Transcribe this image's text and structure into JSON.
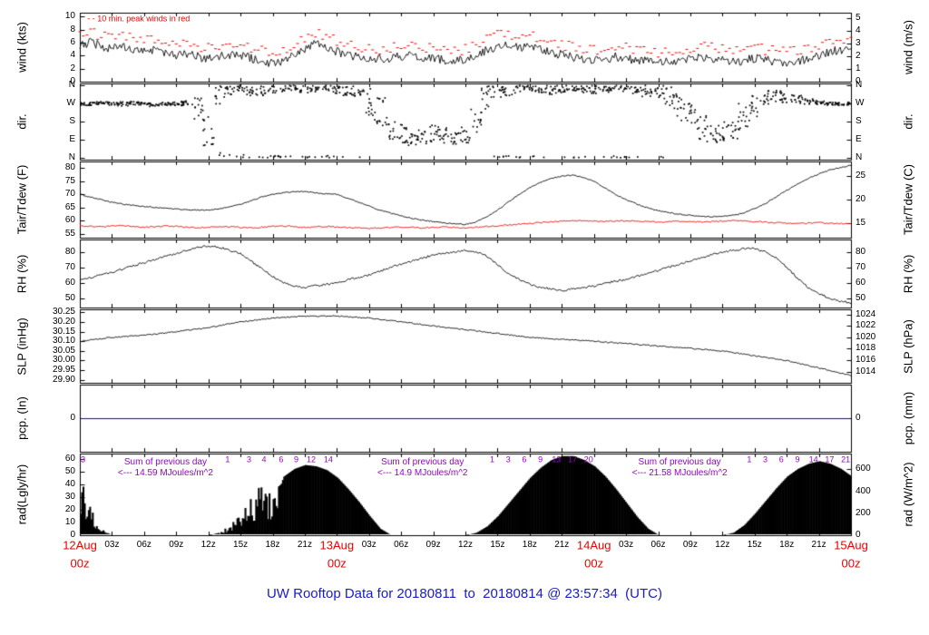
{
  "title": "UW Rooftop Data for 20180811  to  20180814 @ 23:57:34  (UTC)",
  "wind_note": "- - 10 min. peak winds in red",
  "colors": {
    "trace_black": "#000000",
    "peak_red": "#ee0000",
    "dew_red": "#ee0000",
    "title_blue": "#1a1acc",
    "annotation_purple": "#9900cc",
    "precip_blue": "#0000ee",
    "x_major_red": "#ee0000"
  },
  "x_axis": {
    "hours_total": 72,
    "minor_labels": [
      "03z",
      "06z",
      "09z",
      "12z",
      "15z",
      "18z",
      "21z"
    ],
    "major_labels": [
      {
        "line1": "12Aug",
        "line2": "00z",
        "hour": 0
      },
      {
        "line1": "13Aug",
        "line2": "00z",
        "hour": 24
      },
      {
        "line1": "14Aug",
        "line2": "00z",
        "hour": 48
      },
      {
        "line1": "15Aug",
        "line2": "00z",
        "hour": 72
      }
    ]
  },
  "chart_data": [
    {
      "type": "line",
      "name": "wind",
      "ylabel_left": "wind (kts)",
      "ylabel_right": "wind (m/s)",
      "ylim": [
        0,
        10.6
      ],
      "yticks_left": [
        [
          0,
          "0"
        ],
        [
          2,
          "2"
        ],
        [
          4,
          "4"
        ],
        [
          6,
          "6"
        ],
        [
          8,
          "8"
        ],
        [
          10,
          "10"
        ]
      ],
      "yticks_right": [
        [
          0,
          "0"
        ],
        [
          1.944,
          "1"
        ],
        [
          3.888,
          "2"
        ],
        [
          5.832,
          "3"
        ],
        [
          7.776,
          "4"
        ],
        [
          9.72,
          "5"
        ]
      ],
      "noise": 0.7,
      "series": [
        {
          "name": "wind mean (kts)",
          "color": "#000000",
          "values": [
            5.5,
            6.0,
            5.5,
            5.0,
            5.5,
            5.0,
            4.5,
            5.0,
            4.5,
            4.0,
            4.2,
            3.8,
            3.5,
            3.8,
            4.2,
            4.0,
            3.6,
            3.2,
            2.8,
            3.2,
            4.0,
            5.0,
            5.8,
            5.2,
            4.6,
            4.2,
            3.8,
            3.5,
            3.4,
            3.6,
            3.9,
            4.1,
            3.8,
            3.5,
            3.3,
            3.1,
            3.4,
            4.0,
            4.8,
            5.5,
            5.8,
            5.2,
            5.6,
            5.0,
            4.5,
            4.1,
            3.8,
            3.5,
            3.3,
            3.5,
            3.8,
            3.6,
            3.3,
            3.1,
            2.9,
            3.1,
            3.4,
            3.6,
            3.9,
            3.6,
            3.3,
            3.1,
            3.3,
            3.6,
            3.3,
            3.1,
            2.9,
            3.1,
            3.6,
            4.1,
            4.6,
            4.9,
            4.6
          ]
        },
        {
          "name": "10 min. peak winds",
          "color": "#ee0000",
          "style": "dashed",
          "peak_offset": 1.6
        }
      ]
    },
    {
      "type": "scatter",
      "name": "dir",
      "ylabel_left": "dir.",
      "ylabel_right": "dir.",
      "ylim": [
        -10,
        370
      ],
      "yticks_left": [
        [
          0,
          "N"
        ],
        [
          90,
          "E"
        ],
        [
          180,
          "S"
        ],
        [
          270,
          "W"
        ],
        [
          360,
          "N"
        ]
      ],
      "yticks_right": [
        [
          0,
          "N"
        ],
        [
          90,
          "E"
        ],
        [
          180,
          "S"
        ],
        [
          270,
          "W"
        ],
        [
          360,
          "N"
        ]
      ],
      "dirs": [
        [
          270,
          8
        ],
        [
          268,
          8
        ],
        [
          272,
          8
        ],
        [
          270,
          8
        ],
        [
          268,
          10
        ],
        [
          272,
          8
        ],
        [
          270,
          8
        ],
        [
          265,
          10
        ],
        [
          268,
          8
        ],
        [
          270,
          10
        ],
        [
          272,
          12
        ],
        [
          240,
          60
        ],
        [
          150,
          90
        ],
        [
          320,
          70
        ],
        [
          345,
          30
        ],
        [
          350,
          25
        ],
        [
          340,
          30
        ],
        [
          335,
          30
        ],
        [
          345,
          25
        ],
        [
          350,
          20
        ],
        [
          345,
          25
        ],
        [
          340,
          25
        ],
        [
          345,
          20
        ],
        [
          350,
          20
        ],
        [
          345,
          25
        ],
        [
          340,
          30
        ],
        [
          330,
          35
        ],
        [
          280,
          70
        ],
        [
          220,
          80
        ],
        [
          150,
          60
        ],
        [
          120,
          50
        ],
        [
          100,
          40
        ],
        [
          110,
          40
        ],
        [
          120,
          45
        ],
        [
          110,
          40
        ],
        [
          100,
          35
        ],
        [
          120,
          50
        ],
        [
          200,
          80
        ],
        [
          300,
          60
        ],
        [
          330,
          40
        ],
        [
          340,
          30
        ],
        [
          345,
          25
        ],
        [
          350,
          20
        ],
        [
          345,
          20
        ],
        [
          340,
          25
        ],
        [
          345,
          20
        ],
        [
          350,
          18
        ],
        [
          345,
          20
        ],
        [
          340,
          22
        ],
        [
          345,
          20
        ],
        [
          350,
          18
        ],
        [
          345,
          20
        ],
        [
          340,
          25
        ],
        [
          335,
          30
        ],
        [
          330,
          35
        ],
        [
          300,
          60
        ],
        [
          250,
          70
        ],
        [
          200,
          70
        ],
        [
          150,
          60
        ],
        [
          120,
          50
        ],
        [
          130,
          55
        ],
        [
          150,
          60
        ],
        [
          200,
          70
        ],
        [
          260,
          60
        ],
        [
          300,
          40
        ],
        [
          310,
          30
        ],
        [
          300,
          25
        ],
        [
          290,
          20
        ],
        [
          280,
          15
        ],
        [
          275,
          10
        ],
        [
          270,
          8
        ],
        [
          268,
          8
        ],
        [
          270,
          8
        ]
      ]
    },
    {
      "type": "line",
      "name": "temp",
      "ylabel_left": "Tair/Tdew (F)",
      "ylabel_right": "Tair/Tdew (C)",
      "ylim": [
        53.5,
        82.5
      ],
      "yticks_left": [
        [
          55,
          "55"
        ],
        [
          60,
          "60"
        ],
        [
          65,
          "65"
        ],
        [
          70,
          "70"
        ],
        [
          75,
          "75"
        ],
        [
          80,
          "80"
        ]
      ],
      "yticks_right": [
        [
          59,
          "15"
        ],
        [
          68,
          "20"
        ],
        [
          77,
          "25"
        ]
      ],
      "noise": 0.2,
      "series": [
        {
          "name": "Tair (F)",
          "color": "#000000",
          "values": [
            70,
            69,
            68,
            67,
            66.3,
            65.8,
            65.4,
            65,
            64.7,
            64.4,
            64.1,
            64,
            64,
            64.5,
            65.3,
            66.2,
            67.5,
            69,
            70,
            70.6,
            71,
            71,
            70.6,
            70.2,
            70,
            68.5,
            67,
            65.5,
            64,
            62.8,
            61.8,
            60.9,
            60.2,
            59.6,
            59.1,
            58.8,
            58.5,
            59.5,
            61.5,
            64,
            67,
            70,
            72.5,
            74.5,
            76,
            77,
            77.3,
            76.5,
            75,
            72.5,
            70,
            68,
            66.3,
            64.8,
            63.8,
            63,
            62.4,
            62,
            61.7,
            61.5,
            61.5,
            62,
            63,
            64.5,
            66.5,
            69,
            71.5,
            74,
            76,
            77.8,
            79.2,
            80.2,
            81
          ]
        },
        {
          "name": "Tdew (F)",
          "color": "#ee0000",
          "values": [
            58,
            57.8,
            57.6,
            57.9,
            58.1,
            57.8,
            57.5,
            57.7,
            58,
            57.8,
            57.5,
            57.3,
            57.5,
            57.8,
            57.6,
            57.4,
            57.2,
            57.5,
            57.8,
            58,
            57.7,
            57.4,
            57.6,
            57.8,
            57.6,
            57.4,
            57.2,
            57,
            57.2,
            57.4,
            57.6,
            57.4,
            57.2,
            57.4,
            57.6,
            57.4,
            57.2,
            57.4,
            57.7,
            58,
            58.3,
            58.6,
            58.9,
            59.2,
            59.5,
            59.7,
            59.9,
            60,
            59.8,
            59.6,
            59.8,
            60,
            59.8,
            59.6,
            59.4,
            59.6,
            59.8,
            59.6,
            59.4,
            59.6,
            59.8,
            60,
            59.8,
            59.6,
            59.4,
            59.2,
            59,
            58.8,
            59,
            59.2,
            59,
            58.8,
            59
          ]
        }
      ]
    },
    {
      "type": "line",
      "name": "rh",
      "ylabel_left": "RH (%)",
      "ylabel_right": "RH (%)",
      "ylim": [
        44,
        88
      ],
      "yticks_left": [
        [
          50,
          "50"
        ],
        [
          60,
          "60"
        ],
        [
          70,
          "70"
        ],
        [
          80,
          "80"
        ]
      ],
      "yticks_right": [
        [
          50,
          "50"
        ],
        [
          60,
          "60"
        ],
        [
          70,
          "70"
        ],
        [
          80,
          "80"
        ]
      ],
      "noise": 0.7,
      "series": [
        {
          "name": "RH (%)",
          "color": "#000000",
          "values": [
            62,
            63.5,
            65,
            67,
            69,
            71,
            73,
            75,
            77,
            79,
            81,
            83,
            84,
            83,
            81,
            79,
            74,
            69,
            64,
            60,
            58,
            57,
            58,
            59,
            60,
            62,
            63.5,
            65,
            67.5,
            70,
            72,
            74,
            76,
            78,
            79,
            80,
            81,
            80,
            77,
            72,
            66,
            62,
            59,
            57,
            56,
            55,
            56,
            57,
            58,
            59.5,
            61,
            62,
            64,
            66,
            68,
            70,
            72,
            74,
            76,
            78,
            80,
            81,
            82,
            82,
            80,
            76,
            70,
            63,
            57,
            53,
            50,
            48,
            47
          ]
        }
      ]
    },
    {
      "type": "line",
      "name": "slp",
      "ylabel_left": "SLP (inHg)",
      "ylabel_right": "SLP (hPa)",
      "ylim": [
        29.885,
        30.265
      ],
      "yticks_left": [
        [
          29.9,
          "29.90"
        ],
        [
          29.95,
          "29.95"
        ],
        [
          30.0,
          "30.00"
        ],
        [
          30.05,
          "30.05"
        ],
        [
          30.1,
          "30.10"
        ],
        [
          30.15,
          "30.15"
        ],
        [
          30.2,
          "30.20"
        ],
        [
          30.25,
          "30.25"
        ]
      ],
      "yticks_right": [
        [
          29.943,
          "1014"
        ],
        [
          30.002,
          "1016"
        ],
        [
          30.061,
          "1018"
        ],
        [
          30.12,
          "1020"
        ],
        [
          30.179,
          "1022"
        ],
        [
          30.238,
          "1024"
        ]
      ],
      "noise": 0.003,
      "series": [
        {
          "name": "SLP (inHg)",
          "color": "#000000",
          "values": [
            30.1,
            30.107,
            30.113,
            30.12,
            30.123,
            30.127,
            30.13,
            30.137,
            30.143,
            30.15,
            30.157,
            30.163,
            30.17,
            30.18,
            30.19,
            30.2,
            30.207,
            30.213,
            30.22,
            30.223,
            30.227,
            30.23,
            30.23,
            30.23,
            30.23,
            30.227,
            30.223,
            30.22,
            30.213,
            30.207,
            30.2,
            30.193,
            30.187,
            30.18,
            30.173,
            30.167,
            30.16,
            30.153,
            30.147,
            30.14,
            30.133,
            30.127,
            30.12,
            30.117,
            30.113,
            30.11,
            30.107,
            30.103,
            30.1,
            30.096,
            30.092,
            30.088,
            30.083,
            30.079,
            30.075,
            30.071,
            30.067,
            30.063,
            30.058,
            30.054,
            30.05,
            30.042,
            30.033,
            30.025,
            30.017,
            30.008,
            30.0,
            29.988,
            29.975,
            29.962,
            29.949,
            29.936,
            29.923
          ]
        }
      ]
    },
    {
      "type": "line",
      "name": "pcp",
      "ylabel_left": "pcp. (In)",
      "ylabel_right": "pcp. (mm)",
      "ylim": [
        -1,
        1
      ],
      "yticks_left": [
        [
          0,
          "0"
        ]
      ],
      "yticks_right": [
        [
          0,
          "0"
        ]
      ],
      "series": [
        {
          "name": "precip (in)",
          "color": "#0000ee",
          "constant": 0
        }
      ]
    },
    {
      "type": "area",
      "name": "rad",
      "ylabel_left": "rad(Lgly/hr)",
      "ylabel_right": "rad (W/m^2)",
      "ylim": [
        0,
        64
      ],
      "yticks_left": [
        [
          0,
          "0"
        ],
        [
          10,
          "10"
        ],
        [
          20,
          "20"
        ],
        [
          30,
          "30"
        ],
        [
          40,
          "40"
        ],
        [
          50,
          "50"
        ],
        [
          60,
          "60"
        ]
      ],
      "yticks_right": [
        [
          0,
          "0"
        ],
        [
          17.2,
          "200"
        ],
        [
          34.4,
          "400"
        ],
        [
          51.6,
          "600"
        ]
      ],
      "spiky_hours": [
        0,
        1,
        2,
        13,
        14,
        15,
        16,
        17,
        18
      ],
      "series": [
        {
          "name": "solar radiation (Lgly/hr)",
          "color": "#000000",
          "values": [
            42,
            18,
            5,
            0,
            0,
            0,
            0,
            0,
            0,
            0,
            0,
            0,
            0,
            2,
            8,
            15,
            28,
            38,
            30,
            46,
            52,
            55,
            54,
            51,
            45,
            36,
            26,
            15,
            5,
            0,
            0,
            0,
            0,
            0,
            0,
            0,
            0,
            2,
            7,
            15,
            25,
            35,
            45,
            53,
            59,
            62,
            62,
            59,
            54,
            46,
            36,
            25,
            14,
            5,
            0,
            0,
            0,
            0,
            0,
            0,
            0,
            2,
            8,
            17,
            27,
            37,
            46,
            52,
            56,
            58,
            56,
            52,
            46
          ]
        }
      ],
      "sum_annotations": [
        {
          "line1": "Sum of previous day",
          "line2": "<--- 14.59 MJoules/m^2",
          "center_hour": 8
        },
        {
          "line1": "Sum of previous day",
          "line2": "<--- 14.9 MJoules/m^2",
          "center_hour": 32
        },
        {
          "line1": "Sum of previous day",
          "line2": "<--- 21.58 MJoules/m^2",
          "center_hour": 56
        }
      ],
      "cum_marks": [
        [
          0.3,
          "3"
        ],
        [
          13.8,
          "1"
        ],
        [
          15.8,
          "3"
        ],
        [
          17.2,
          "4"
        ],
        [
          18.8,
          "6"
        ],
        [
          20.2,
          "9"
        ],
        [
          21.6,
          "12"
        ],
        [
          23.2,
          "14"
        ],
        [
          38.5,
          "1"
        ],
        [
          40,
          "3"
        ],
        [
          41.5,
          "6"
        ],
        [
          43,
          "9"
        ],
        [
          44.5,
          "13"
        ],
        [
          46,
          "17"
        ],
        [
          47.5,
          "20"
        ],
        [
          62.5,
          "1"
        ],
        [
          64,
          "3"
        ],
        [
          65.5,
          "6"
        ],
        [
          67,
          "9"
        ],
        [
          68.5,
          "14"
        ],
        [
          70,
          "17"
        ],
        [
          71.5,
          "21"
        ]
      ]
    }
  ]
}
